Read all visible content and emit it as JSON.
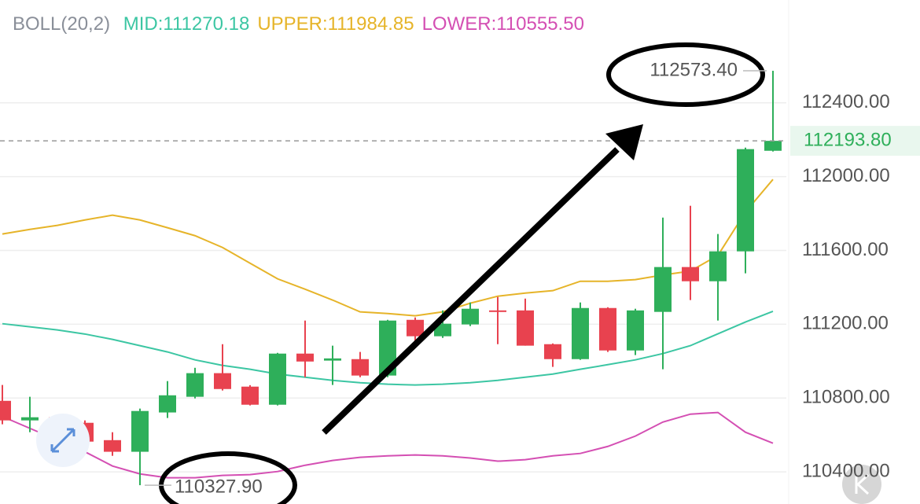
{
  "chart_data": {
    "type": "candlestick",
    "indicator": {
      "title": "BOLL(20,2)",
      "items": [
        {
          "name": "MID:",
          "label": "111270.18",
          "color": "#3cc6a3"
        },
        {
          "name": "UPPER:",
          "label": "111984.85",
          "color": "#e6b429"
        },
        {
          "name": "LOWER:",
          "label": "110555.50",
          "color": "#d44fb3"
        }
      ]
    },
    "up_color": "#2eaf5a",
    "down_color": "#e8424f",
    "open": [
      110785,
      110679,
      110696,
      110666,
      110572,
      110509,
      110722,
      110807,
      110935,
      110862,
      110764,
      111041,
      111003,
      111011,
      110922,
      111224,
      111135,
      111199,
      111275,
      111275,
      111092,
      111011,
      111288,
      111058,
      111267,
      111510,
      111433,
      111595,
      112140
    ],
    "close": [
      110679,
      110696,
      110658,
      110564,
      110509,
      110730,
      110815,
      110935,
      110849,
      110764,
      111041,
      110998,
      111015,
      110922,
      111220,
      111135,
      111203,
      111284,
      111267,
      111084,
      111011,
      111288,
      111058,
      111275,
      111510,
      111433,
      111595,
      112149,
      112193.8
    ],
    "high": [
      110871,
      110807,
      110709,
      110679,
      110615,
      110743,
      110892,
      110964,
      111092,
      110870,
      111045,
      111220,
      111084,
      111050,
      111224,
      111237,
      111275,
      111318,
      111348,
      111339,
      111096,
      111318,
      111292,
      111284,
      111778,
      111842,
      111689,
      112157,
      112573.4
    ],
    "low": [
      110658,
      110615,
      110636,
      110538,
      110487,
      110327.9,
      110692,
      110798,
      110841,
      110760,
      110760,
      110913,
      110871,
      110913,
      110913,
      111084,
      111126,
      111190,
      111092,
      111084,
      110969,
      111007,
      111050,
      111033,
      110956,
      111331,
      111220,
      111476,
      112136
    ],
    "high_label": {
      "index": 28,
      "label": "112573.40"
    },
    "low_label": {
      "index": 5,
      "label": "110327.90"
    },
    "last_price": {
      "value": 112193.8,
      "label": "112193.80"
    },
    "series": [
      {
        "name": "UPPER:",
        "color": "#e6b429",
        "values": [
          111689,
          111714,
          111736,
          111765,
          111791,
          111765,
          111723,
          111680,
          111616,
          111531,
          111446,
          111390,
          111331,
          111267,
          111258,
          111246,
          111267,
          111314,
          111352,
          111369,
          111382,
          111433,
          111433,
          111442,
          111467,
          111488,
          111573,
          111808,
          111984.85
        ]
      },
      {
        "name": "MID:",
        "color": "#3cc6a3",
        "values": [
          111203,
          111186,
          111169,
          111147,
          111118,
          111084,
          111050,
          111007,
          110977,
          110956,
          110930,
          110913,
          110896,
          110883,
          110875,
          110871,
          110875,
          110883,
          110896,
          110913,
          110930,
          110956,
          110981,
          111007,
          111041,
          111084,
          111148,
          111212,
          111270.18
        ]
      },
      {
        "name": "LOWER:",
        "color": "#d44fb3",
        "values": [
          110700,
          110636,
          110572,
          110509,
          110432,
          110389,
          110368,
          110368,
          110381,
          110385,
          110402,
          110436,
          110462,
          110479,
          110487,
          110492,
          110487,
          110475,
          110458,
          110466,
          110487,
          110500,
          110538,
          110594,
          110670,
          110713,
          110722,
          110615,
          110555.5
        ]
      }
    ],
    "ylim": [
      110226,
      112957
    ],
    "yticks": [
      {
        "value": 110400,
        "label": "110400.00"
      },
      {
        "value": 110800,
        "label": "110800.00"
      },
      {
        "value": 111200,
        "label": "111200.00"
      },
      {
        "value": 111600,
        "label": "111600.00"
      },
      {
        "value": 112000,
        "label": "112000.00"
      },
      {
        "value": 112400,
        "label": "112400.00"
      }
    ],
    "grid": true
  }
}
